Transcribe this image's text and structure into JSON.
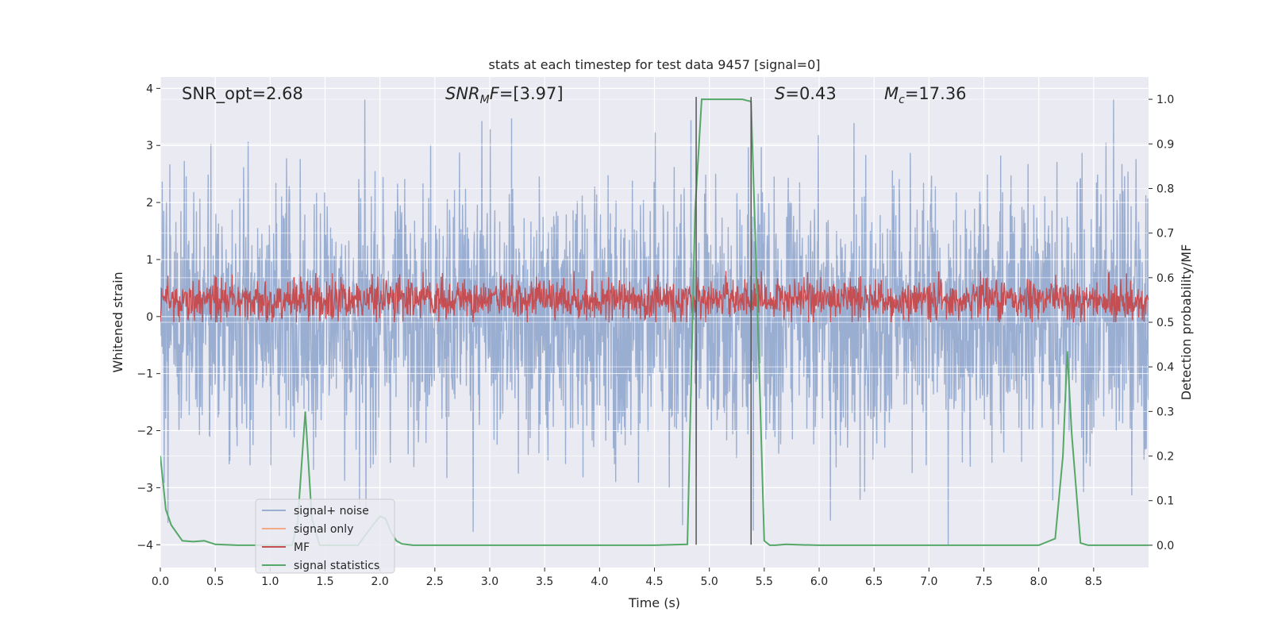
{
  "chart_data": {
    "type": "line",
    "title": "stats at each timestep for test data 9457 [signal=0]",
    "xlabel": "Time (s)",
    "ylabel": "Whitened strain",
    "y2label": "Detection probability/MF",
    "xlim": [
      0.0,
      9.0
    ],
    "ylim": [
      -4.4,
      4.2
    ],
    "y2lim": [
      -0.05,
      1.05
    ],
    "xticks": [
      "0.0",
      "0.5",
      "1.0",
      "1.5",
      "2.0",
      "2.5",
      "3.0",
      "3.5",
      "4.0",
      "4.5",
      "5.0",
      "5.5",
      "6.0",
      "6.5",
      "7.0",
      "7.5",
      "8.0",
      "8.5"
    ],
    "xtick_values": [
      0,
      0.5,
      1,
      1.5,
      2,
      2.5,
      3,
      3.5,
      4,
      4.5,
      5,
      5.5,
      6,
      6.5,
      7,
      7.5,
      8,
      8.5
    ],
    "yticks": [
      "−4",
      "−3",
      "−2",
      "−1",
      "0",
      "1",
      "2",
      "3",
      "4"
    ],
    "ytick_values": [
      -4,
      -3,
      -2,
      -1,
      0,
      1,
      2,
      3,
      4
    ],
    "y2ticks": [
      "0.0",
      "0.1",
      "0.2",
      "0.3",
      "0.4",
      "0.5",
      "0.6",
      "0.7",
      "0.8",
      "0.9",
      "1.0"
    ],
    "y2tick_values": [
      0,
      0.1,
      0.2,
      0.3,
      0.4,
      0.5,
      0.6,
      0.7,
      0.8,
      0.9,
      1.0
    ],
    "annotations": {
      "snr_opt": "SNR_opt=2.68",
      "snr_mf_base": "SNR",
      "snr_mf_sub": "M",
      "snr_mf_rest": "F=[3.97]",
      "s_sym": "S",
      "s_val": "=0.43",
      "mc_sym": "M",
      "mc_sub": "c",
      "mc_val": "=17.36"
    },
    "legend": [
      "signal+ noise",
      "signal only",
      "MF",
      "signal statistics"
    ],
    "legend_location": "lower-left",
    "grid": true,
    "colors": {
      "background": "#eaeaf2",
      "grid": "#ffffff",
      "noise": "#9aaed2",
      "signal_only": "#f2a98a",
      "mf": "#c44e52",
      "stats": "#55a868",
      "vline": "#555555"
    },
    "series": [
      {
        "name": "signal+ noise",
        "summary": "noisy whitened strain oscillating roughly between -2.5 and 2.5 with spikes to about +/-3.5",
        "envelope": {
          "typical_min": -2.5,
          "typical_max": 2.5,
          "peak_min": -4.0,
          "peak_max": 3.8
        }
      },
      {
        "name": "signal only",
        "summary": "not visible (zero signal)"
      },
      {
        "name": "MF",
        "summary": "matched-filter output on right axis, dense band between ~0.50 and ~0.60",
        "band": [
          0.5,
          0.61
        ]
      },
      {
        "name": "signal statistics",
        "x": [
          0.0,
          0.05,
          0.1,
          0.2,
          0.3,
          0.4,
          0.5,
          0.7,
          1.0,
          1.2,
          1.25,
          1.32,
          1.38,
          1.45,
          1.6,
          1.8,
          1.92,
          2.0,
          2.05,
          2.1,
          2.15,
          2.2,
          2.3,
          2.4,
          2.5,
          3.0,
          3.5,
          4.0,
          4.5,
          4.8,
          4.87,
          4.93,
          5.0,
          5.3,
          5.38,
          5.43,
          5.5,
          5.55,
          5.6,
          5.7,
          5.8,
          6.0,
          6.5,
          7.0,
          7.5,
          8.0,
          8.15,
          8.22,
          8.26,
          8.3,
          8.38,
          8.45,
          8.55,
          9.0
        ],
        "values": [
          0.2,
          0.08,
          0.045,
          0.01,
          0.008,
          0.01,
          0.002,
          0.0,
          0.0,
          0.0,
          0.05,
          0.3,
          0.06,
          0.0,
          0.0,
          0.0,
          0.04,
          0.065,
          0.06,
          0.03,
          0.01,
          0.003,
          0.0,
          0.0,
          0.0,
          0.0,
          0.0,
          0.0,
          0.0,
          0.002,
          0.75,
          1.0,
          1.0,
          1.0,
          0.995,
          0.6,
          0.01,
          0.0,
          0.0,
          0.002,
          0.001,
          0.0,
          0.0,
          0.0,
          0.0,
          0.0,
          0.015,
          0.2,
          0.435,
          0.25,
          0.005,
          0.0,
          0.0,
          0.0
        ]
      }
    ],
    "vlines": [
      {
        "x": 4.88,
        "y_from": -4.0,
        "y_to": 3.85
      },
      {
        "x": 5.38,
        "y_from": -4.0,
        "y_to": 3.85
      }
    ]
  }
}
